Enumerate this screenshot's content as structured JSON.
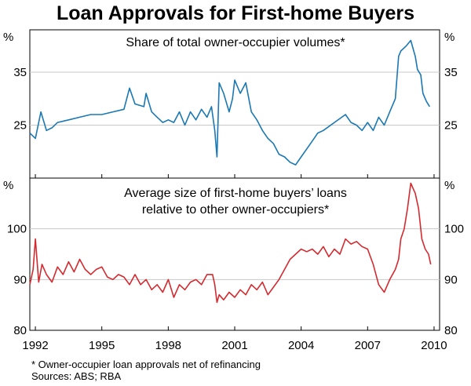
{
  "chart_data": [
    {
      "type": "line",
      "title": "Loan Approvals for First-home Buyers",
      "panel_title": "Share of total owner-occupier volumes*",
      "unit_left": "%",
      "unit_right": "%",
      "ylim": [
        15,
        43
      ],
      "yticks": [
        25,
        35
      ],
      "xlim": [
        1991.75,
        2010.25
      ],
      "xticks": [
        1992,
        1995,
        1998,
        2001,
        2004,
        2007,
        2010
      ],
      "xtick_labels": [
        "1992",
        "1995",
        "1998",
        "2001",
        "2004",
        "2007",
        "2010"
      ],
      "color": "#1a78b4",
      "series": [
        {
          "x": [
            1991.75,
            1992.0,
            1992.25,
            1992.5,
            1992.75,
            1993.0,
            1993.5,
            1994.0,
            1994.5,
            1995.0,
            1995.5,
            1996.0,
            1996.25,
            1996.5,
            1996.9,
            1997.0,
            1997.25,
            1997.5,
            1997.75,
            1998.0,
            1998.25,
            1998.5,
            1998.75,
            1999.0,
            1999.25,
            1999.5,
            1999.75,
            1999.95,
            2000.1,
            2000.2,
            2000.3,
            2000.5,
            2000.75,
            2000.9,
            2001.0,
            2001.25,
            2001.5,
            2001.75,
            2002.0,
            2002.25,
            2002.5,
            2002.75,
            2003.0,
            2003.25,
            2003.5,
            2003.75,
            2004.0,
            2004.25,
            2004.5,
            2004.75,
            2005.0,
            2005.5,
            2006.0,
            2006.25,
            2006.5,
            2006.75,
            2007.0,
            2007.25,
            2007.5,
            2007.75,
            2008.0,
            2008.25,
            2008.4,
            2008.5,
            2008.75,
            2008.95,
            2009.05,
            2009.15,
            2009.25,
            2009.4,
            2009.5,
            2009.65,
            2009.8
          ],
          "y": [
            23.5,
            22.5,
            27.5,
            24.0,
            24.5,
            25.5,
            26.0,
            26.5,
            27.0,
            27.0,
            27.5,
            28.0,
            32.0,
            29.0,
            28.5,
            31.0,
            27.5,
            26.5,
            25.5,
            26.0,
            25.5,
            27.5,
            25.0,
            27.5,
            26.0,
            28.0,
            26.5,
            28.5,
            24.0,
            19.0,
            33.0,
            31.0,
            27.5,
            30.0,
            33.5,
            31.0,
            33.0,
            27.5,
            26.0,
            24.0,
            22.5,
            21.5,
            19.5,
            19.0,
            18.0,
            17.5,
            19.0,
            20.5,
            22.0,
            23.5,
            24.0,
            25.5,
            27.0,
            25.5,
            25.0,
            24.0,
            25.5,
            24.0,
            26.5,
            25.0,
            27.5,
            30.0,
            38.0,
            39.0,
            40.0,
            41.0,
            39.5,
            38.0,
            35.5,
            34.5,
            31.0,
            29.5,
            28.5
          ]
        }
      ]
    },
    {
      "type": "line",
      "panel_title_line1": "Average size of first-home buyers’ loans",
      "panel_title_line2": "relative to other owner-occupiers*",
      "unit_left": "%",
      "unit_right": "%",
      "ylim": [
        80,
        110
      ],
      "yticks": [
        80,
        90,
        100
      ],
      "xlim": [
        1991.75,
        2010.25
      ],
      "xticks": [
        1992,
        1995,
        1998,
        2001,
        2004,
        2007,
        2010
      ],
      "xtick_labels": [
        "1992",
        "1995",
        "1998",
        "2001",
        "2004",
        "2007",
        "2010"
      ],
      "color": "#d42a2f",
      "series": [
        {
          "x": [
            1991.75,
            1991.9,
            1992.0,
            1992.15,
            1992.3,
            1992.5,
            1992.75,
            1993.0,
            1993.25,
            1993.5,
            1993.75,
            1994.0,
            1994.25,
            1994.5,
            1994.75,
            1995.0,
            1995.25,
            1995.5,
            1995.75,
            1996.0,
            1996.25,
            1996.5,
            1996.75,
            1997.0,
            1997.25,
            1997.5,
            1997.75,
            1998.0,
            1998.25,
            1998.5,
            1998.75,
            1999.0,
            1999.25,
            1999.5,
            1999.75,
            2000.0,
            2000.1,
            2000.2,
            2000.3,
            2000.5,
            2000.75,
            2001.0,
            2001.25,
            2001.5,
            2001.75,
            2002.0,
            2002.25,
            2002.5,
            2002.75,
            2003.0,
            2003.25,
            2003.5,
            2003.75,
            2004.0,
            2004.25,
            2004.5,
            2004.75,
            2005.0,
            2005.25,
            2005.5,
            2005.75,
            2006.0,
            2006.25,
            2006.5,
            2006.75,
            2007.0,
            2007.25,
            2007.5,
            2007.75,
            2008.0,
            2008.25,
            2008.4,
            2008.5,
            2008.65,
            2008.8,
            2008.95,
            2009.05,
            2009.15,
            2009.3,
            2009.45,
            2009.6,
            2009.75,
            2009.85
          ],
          "y": [
            89.0,
            92.0,
            98.0,
            89.5,
            93.0,
            91.0,
            89.5,
            92.5,
            91.0,
            93.5,
            91.5,
            94.0,
            92.0,
            91.0,
            92.0,
            92.5,
            90.5,
            90.0,
            91.0,
            90.5,
            89.0,
            91.0,
            89.0,
            90.0,
            88.0,
            89.0,
            87.5,
            90.0,
            86.5,
            89.0,
            88.0,
            89.5,
            90.0,
            89.0,
            91.0,
            91.0,
            89.0,
            85.5,
            87.0,
            86.0,
            87.5,
            86.5,
            88.0,
            87.0,
            89.0,
            88.0,
            89.5,
            87.0,
            88.5,
            90.0,
            92.0,
            94.0,
            95.0,
            96.0,
            95.5,
            96.0,
            95.0,
            96.5,
            94.5,
            96.0,
            95.0,
            98.0,
            97.0,
            97.5,
            96.5,
            96.0,
            93.0,
            89.0,
            87.5,
            90.0,
            92.0,
            94.0,
            98.0,
            100.0,
            104.0,
            109.0,
            108.0,
            107.0,
            104.0,
            98.0,
            96.0,
            95.0,
            93.0
          ]
        }
      ]
    }
  ],
  "footnote": "*   Owner-occupier loan approvals net of refinancing",
  "sources": "Sources: ABS; RBA"
}
